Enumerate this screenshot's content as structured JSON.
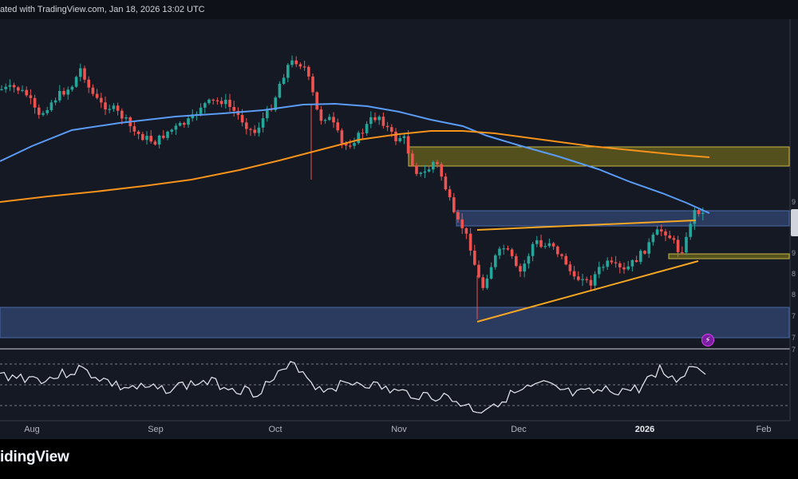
{
  "header": {
    "text": "ated with TradingView.com, Jan 18, 2026 13:02 UTC"
  },
  "footer": {
    "brand": "idingView"
  },
  "chart_data": {
    "type": "candlestick",
    "x_axis_labels": [
      {
        "label": "Aug",
        "bold": false
      },
      {
        "label": "Sep",
        "bold": false
      },
      {
        "label": "Oct",
        "bold": false
      },
      {
        "label": "Nov",
        "bold": false
      },
      {
        "label": "Dec",
        "bold": false
      },
      {
        "label": "2026",
        "bold": true
      },
      {
        "label": "Feb",
        "bold": false
      }
    ],
    "price_axis_fragments": [
      "9",
      "9",
      "9",
      "8",
      "8",
      "7",
      "7",
      "7"
    ],
    "colors": {
      "up": "#26a69a",
      "down": "#ef5350",
      "ma_fast": "#5b9cf6",
      "ma_slow": "#f7931a",
      "trendline": "#f5a623",
      "zone_blue": "#2d3f66",
      "zone_yellow": "#5e5a1c",
      "rsi": "#e8eaf0"
    },
    "zones": [
      "supply-zone-yellow",
      "resistance-zone-blue",
      "support-zone-yellow",
      "demand-zone-blue"
    ],
    "indicators": [
      "moving-average-100",
      "moving-average-200",
      "rsi"
    ],
    "grid": false
  }
}
